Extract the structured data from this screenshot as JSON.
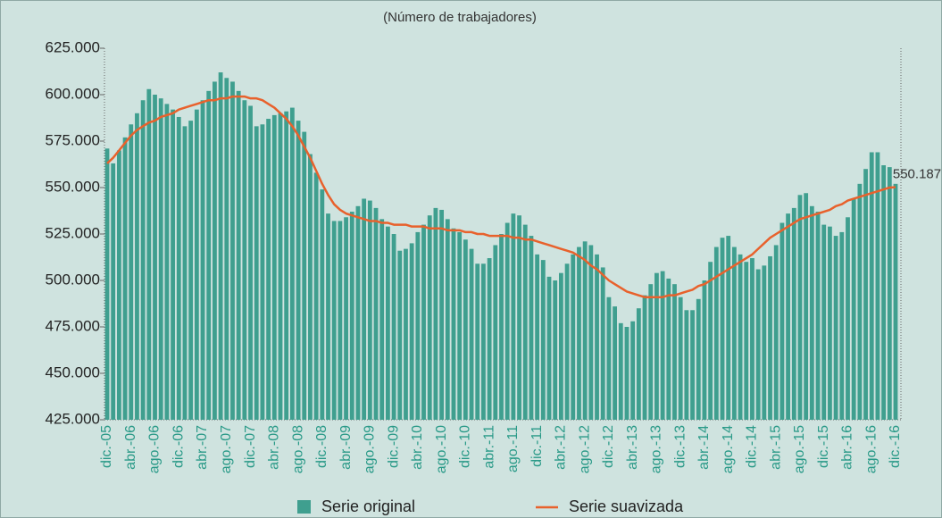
{
  "chart_data": {
    "type": "bar_line",
    "subtitle": "(Número de trabajadores)",
    "categories": [
      "dic.-05",
      null,
      null,
      null,
      "abr.-06",
      null,
      null,
      null,
      "ago.-06",
      null,
      null,
      null,
      "dic.-06",
      null,
      null,
      null,
      "abr.-07",
      null,
      null,
      null,
      "ago.-07",
      null,
      null,
      null,
      "dic.-07",
      null,
      null,
      null,
      "abr.-08",
      null,
      null,
      null,
      "ago.-08",
      null,
      null,
      null,
      "dic.-08",
      null,
      null,
      null,
      "abr.-09",
      null,
      null,
      null,
      "ago.-09",
      null,
      null,
      null,
      "dic.-09",
      null,
      null,
      null,
      "abr.-10",
      null,
      null,
      null,
      "ago.-10",
      null,
      null,
      null,
      "dic.-10",
      null,
      null,
      null,
      "abr.-11",
      null,
      null,
      null,
      "ago.-11",
      null,
      null,
      null,
      "dic.-11",
      null,
      null,
      null,
      "abr.-12",
      null,
      null,
      null,
      "ago.-12",
      null,
      null,
      null,
      "dic.-12",
      null,
      null,
      null,
      "abr.-13",
      null,
      null,
      null,
      "ago.-13",
      null,
      null,
      null,
      "dic.-13",
      null,
      null,
      null,
      "abr.-14",
      null,
      null,
      null,
      "ago.-14",
      null,
      null,
      null,
      "dic.-14",
      null,
      null,
      null,
      "abr.-15",
      null,
      null,
      null,
      "ago.-15",
      null,
      null,
      null,
      "dic.-15",
      null,
      null,
      null,
      "abr.-16",
      null,
      null,
      null,
      "ago.-16",
      null,
      null,
      null,
      "dic.-16"
    ],
    "series": [
      {
        "name": "Serie original",
        "kind": "bar",
        "color": "#3f9f8f",
        "values": [
          571000,
          563000,
          570000,
          577000,
          584000,
          590000,
          597000,
          603000,
          600000,
          598000,
          595000,
          592000,
          588000,
          583000,
          586000,
          592000,
          597000,
          602000,
          607000,
          612000,
          609000,
          607000,
          602000,
          597000,
          594000,
          583000,
          584000,
          587000,
          589000,
          590000,
          591000,
          593000,
          586000,
          580000,
          568000,
          558000,
          549000,
          536000,
          532000,
          532000,
          534000,
          537000,
          540000,
          544000,
          543000,
          539000,
          533000,
          529000,
          525000,
          516000,
          517000,
          520000,
          526000,
          530000,
          535000,
          539000,
          538000,
          533000,
          528000,
          526000,
          522000,
          517000,
          509000,
          509000,
          512000,
          519000,
          525000,
          531000,
          536000,
          535000,
          530000,
          524000,
          514000,
          511000,
          502000,
          500000,
          504000,
          509000,
          514000,
          518000,
          521000,
          519000,
          514000,
          507000,
          491000,
          486000,
          477000,
          475000,
          478000,
          485000,
          492000,
          498000,
          504000,
          505000,
          501000,
          498000,
          491000,
          484000,
          484000,
          490000,
          500000,
          510000,
          518000,
          523000,
          524000,
          518000,
          514000,
          510000,
          512000,
          506000,
          508000,
          513000,
          519000,
          531000,
          536000,
          539000,
          546000,
          547000,
          540000,
          537000,
          530000,
          529000,
          524000,
          526000,
          534000,
          544000,
          552000,
          560000,
          569000,
          569000,
          562000,
          561000,
          552000
        ]
      },
      {
        "name": "Serie suavizada",
        "kind": "line",
        "color": "#e8612c",
        "values": [
          563000,
          566000,
          570000,
          574000,
          578000,
          581000,
          583000,
          585000,
          586000,
          588000,
          589000,
          590000,
          592000,
          593000,
          594000,
          595000,
          596000,
          597000,
          597000,
          598000,
          598000,
          599000,
          599000,
          599000,
          598000,
          598000,
          597000,
          595000,
          593000,
          590000,
          587000,
          583000,
          578000,
          572000,
          566000,
          559000,
          552000,
          546000,
          541000,
          538000,
          536000,
          535000,
          534000,
          533000,
          532000,
          532000,
          531000,
          531000,
          530000,
          530000,
          530000,
          529000,
          529000,
          529000,
          528000,
          528000,
          528000,
          527000,
          527000,
          527000,
          526000,
          526000,
          525000,
          525000,
          524000,
          524000,
          524000,
          524000,
          523000,
          523000,
          522000,
          522000,
          521000,
          520000,
          519000,
          518000,
          517000,
          516000,
          515000,
          513000,
          511000,
          508000,
          506000,
          503000,
          500000,
          498000,
          496000,
          494000,
          493000,
          492000,
          491000,
          491000,
          491000,
          491000,
          492000,
          492000,
          493000,
          494000,
          495000,
          497000,
          498000,
          500000,
          502000,
          504000,
          506000,
          508000,
          510000,
          512000,
          514000,
          517000,
          520000,
          523000,
          525000,
          527000,
          529000,
          531000,
          533000,
          534000,
          535000,
          536000,
          537000,
          538000,
          540000,
          541000,
          543000,
          544000,
          545000,
          546000,
          547000,
          548000,
          549000,
          550000,
          550187
        ],
        "value_labels": [
          null,
          null,
          null,
          null,
          null,
          null,
          null,
          null,
          null,
          null,
          null,
          null,
          null,
          null,
          null,
          null,
          null,
          null,
          null,
          null,
          null,
          null,
          null,
          null,
          null,
          null,
          null,
          null,
          null,
          null,
          null,
          null,
          null,
          null,
          null,
          null,
          null,
          null,
          null,
          null,
          null,
          null,
          null,
          null,
          null,
          null,
          null,
          null,
          null,
          null,
          null,
          null,
          null,
          null,
          null,
          null,
          null,
          null,
          null,
          null,
          null,
          null,
          null,
          null,
          null,
          null,
          null,
          null,
          null,
          null,
          null,
          null,
          null,
          null,
          null,
          null,
          null,
          null,
          null,
          null,
          null,
          null,
          null,
          null,
          null,
          null,
          null,
          null,
          null,
          null,
          null,
          null,
          null,
          null,
          null,
          null,
          null,
          null,
          null,
          null,
          null,
          null,
          null,
          null,
          null,
          null,
          null,
          null,
          null,
          null,
          null,
          null,
          null,
          null,
          null,
          null,
          null,
          null,
          null,
          null,
          null,
          null,
          null,
          null,
          null,
          null,
          null,
          null,
          null,
          null,
          null,
          null,
          "550.187"
        ]
      }
    ],
    "ylim": [
      425000,
      625000
    ],
    "yticks": [
      {
        "value": 425000,
        "label": "425.000"
      },
      {
        "value": 450000,
        "label": "450.000"
      },
      {
        "value": 475000,
        "label": "475.000"
      },
      {
        "value": 500000,
        "label": "500.000"
      },
      {
        "value": 525000,
        "label": "525.000"
      },
      {
        "value": 550000,
        "label": "550.000"
      },
      {
        "value": 575000,
        "label": "575.000"
      },
      {
        "value": 600000,
        "label": "600.000"
      },
      {
        "value": 625000,
        "label": "625.000"
      }
    ],
    "grid": false
  }
}
